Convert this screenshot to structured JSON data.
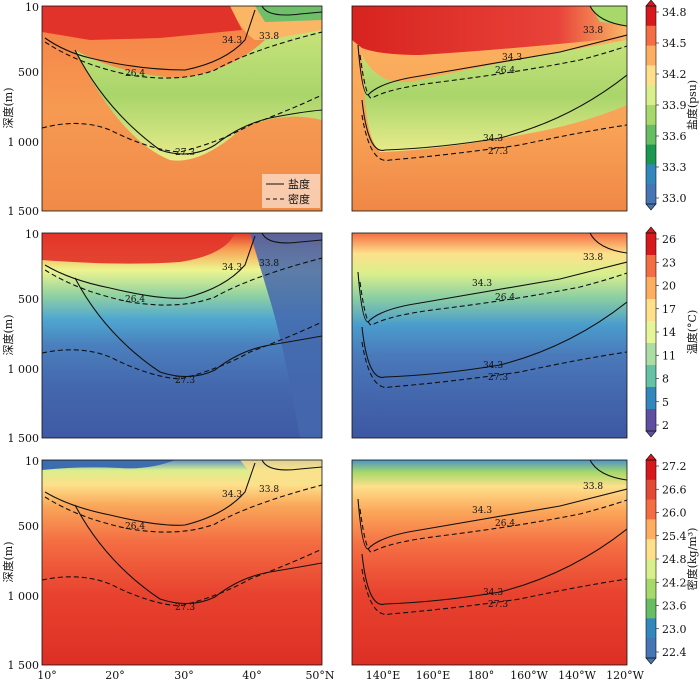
{
  "chart_data": [
    {
      "type": "heatmap",
      "panel": "salinity-latitude",
      "ylabel": "深度(m)",
      "y_ticks": [
        "10",
        "500",
        "1 000",
        "1 500"
      ],
      "x_ticks": [],
      "contour_labels": [
        "34.3",
        "33.8",
        "26.4",
        "27.3"
      ],
      "legend": [
        {
          "label": "盐度",
          "style": "solid"
        },
        {
          "label": "密度",
          "style": "dashed"
        }
      ]
    },
    {
      "type": "heatmap",
      "panel": "salinity-longitude",
      "contour_labels": [
        "33.8",
        "34.3",
        "26.4",
        "34.3",
        "27.3"
      ],
      "colorbar": {
        "label": "盐度(psu)",
        "ticks": [
          "34.8",
          "34.5",
          "34.2",
          "33.9",
          "33.6",
          "33.3",
          "33.0"
        ],
        "colors": [
          "#d7191c",
          "#f46d43",
          "#fdae61",
          "#fee08b",
          "#d9ef8b",
          "#a6d96a",
          "#66bd63",
          "#1a9850",
          "#3288bd",
          "#4575b4"
        ]
      }
    },
    {
      "type": "heatmap",
      "panel": "temperature-latitude",
      "ylabel": "深度(m)",
      "y_ticks": [
        "10",
        "500",
        "1 000",
        "1 500"
      ],
      "contour_labels": [
        "34.3",
        "33.8",
        "26.4",
        "27.3"
      ]
    },
    {
      "type": "heatmap",
      "panel": "temperature-longitude",
      "contour_labels": [
        "33.8",
        "34.3",
        "26.4",
        "34.3",
        "27.3"
      ],
      "colorbar": {
        "label": "温度(°C)",
        "ticks": [
          "26",
          "23",
          "20",
          "17",
          "14",
          "11",
          "8",
          "5",
          "2"
        ],
        "colors": [
          "#d7191c",
          "#f46d43",
          "#fdae61",
          "#fee08b",
          "#e6f598",
          "#abdda4",
          "#66c2a5",
          "#3288bd",
          "#5e4fa2"
        ]
      }
    },
    {
      "type": "heatmap",
      "panel": "density-latitude",
      "ylabel": "深度(m)",
      "y_ticks": [
        "10",
        "500",
        "1 000",
        "1 500"
      ],
      "x_ticks": [
        "10°",
        "20°",
        "30°",
        "40°",
        "50°N"
      ],
      "contour_labels": [
        "34.3",
        "33.8",
        "26.4",
        "27.3"
      ]
    },
    {
      "type": "heatmap",
      "panel": "density-longitude",
      "x_ticks": [
        "140°E",
        "160°E",
        "180°",
        "160°W",
        "140°W",
        "120°W"
      ],
      "contour_labels": [
        "33.8",
        "34.3",
        "26.4",
        "34.3",
        "27.3"
      ],
      "colorbar": {
        "label": "密度(kg/m³)",
        "ticks": [
          "27.2",
          "26.6",
          "26.0",
          "25.4",
          "24.8",
          "24.2",
          "23.6",
          "23.0",
          "22.4"
        ],
        "colors": [
          "#d7191c",
          "#e34a33",
          "#f46d43",
          "#fdae61",
          "#fee08b",
          "#d9ef8b",
          "#a6d96a",
          "#66bd63",
          "#3288bd",
          "#4575b4"
        ]
      }
    }
  ]
}
